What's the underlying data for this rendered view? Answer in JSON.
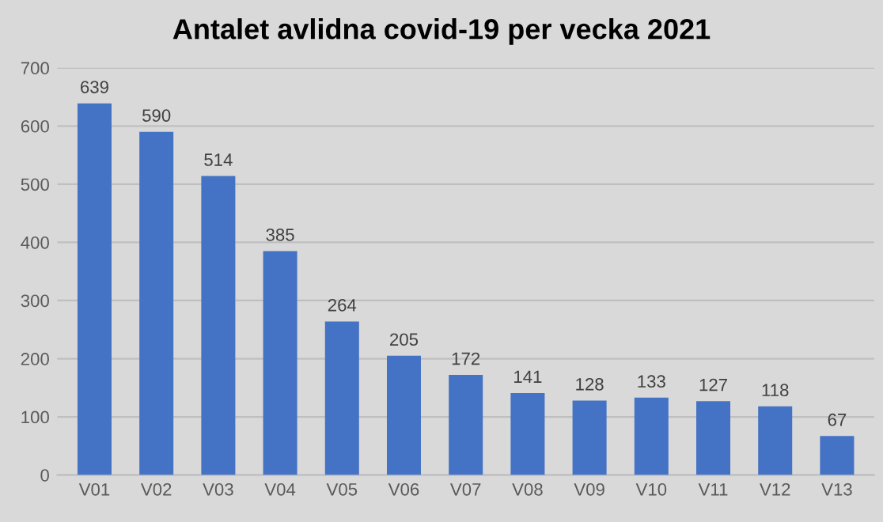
{
  "chart_data": {
    "type": "bar",
    "title": "Antalet avlidna covid-19 per vecka 2021",
    "categories": [
      "V01",
      "V02",
      "V03",
      "V04",
      "V05",
      "V06",
      "V07",
      "V08",
      "V09",
      "V10",
      "V11",
      "V12",
      "V13"
    ],
    "values": [
      639,
      590,
      514,
      385,
      264,
      205,
      172,
      141,
      128,
      133,
      127,
      118,
      67
    ],
    "color": "#4472c4",
    "ylim": [
      0,
      700
    ],
    "yticks": [
      0,
      100,
      200,
      300,
      400,
      500,
      600,
      700
    ],
    "grid": "y",
    "data_labels": true
  }
}
